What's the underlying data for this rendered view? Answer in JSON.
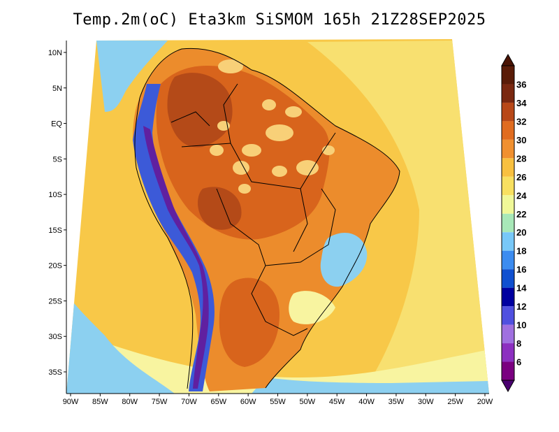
{
  "title": "Temp.2m(oC) Eta3km SiSMOM 165h 21Z28SEP2025",
  "variable": "Temp.2m",
  "units": "oC",
  "model": "Eta3km SiSMOM",
  "forecast_hour": "165h",
  "valid_time": "21Z28SEP2025",
  "lat_ticks": [
    {
      "label": "10N",
      "lat": 10
    },
    {
      "label": "5N",
      "lat": 5
    },
    {
      "label": "EQ",
      "lat": 0
    },
    {
      "label": "5S",
      "lat": -5
    },
    {
      "label": "10S",
      "lat": -10
    },
    {
      "label": "15S",
      "lat": -15
    },
    {
      "label": "20S",
      "lat": -20
    },
    {
      "label": "25S",
      "lat": -25
    },
    {
      "label": "30S",
      "lat": -30
    },
    {
      "label": "35S",
      "lat": -35
    }
  ],
  "lon_ticks": [
    {
      "label": "90W",
      "lon": -90
    },
    {
      "label": "85W",
      "lon": -85
    },
    {
      "label": "80W",
      "lon": -80
    },
    {
      "label": "75W",
      "lon": -75
    },
    {
      "label": "70W",
      "lon": -70
    },
    {
      "label": "65W",
      "lon": -65
    },
    {
      "label": "60W",
      "lon": -60
    },
    {
      "label": "55W",
      "lon": -55
    },
    {
      "label": "50W",
      "lon": -50
    },
    {
      "label": "45W",
      "lon": -45
    },
    {
      "label": "40W",
      "lon": -40
    },
    {
      "label": "35W",
      "lon": -35
    },
    {
      "label": "30W",
      "lon": -30
    },
    {
      "label": "25W",
      "lon": -25
    },
    {
      "label": "20W",
      "lon": -20
    }
  ],
  "colorbar": {
    "levels": [
      "6",
      "8",
      "10",
      "12",
      "14",
      "16",
      "18",
      "20",
      "22",
      "24",
      "26",
      "28",
      "30",
      "32",
      "34",
      "36"
    ],
    "colors": [
      "#7a0080",
      "#8c30c0",
      "#a070e0",
      "#5050e0",
      "#0000a0",
      "#1050d0",
      "#3c8cf0",
      "#78c8f8",
      "#a8e8b8",
      "#f0f898",
      "#f8e060",
      "#f8c040",
      "#f09030",
      "#e06c20",
      "#b84818",
      "#7a2810",
      "#5a1c08"
    ]
  },
  "legend": {
    "colorbar_position": "right",
    "below_min_color": "#4a0070",
    "above_max_color": "#4a1404"
  },
  "field_colors": {
    "ocean_warm": "#f8c848",
    "ocean_mild": "#f8e070",
    "ocean_cool": "#f8f4a0",
    "land_hot": "#d8641c",
    "land_very_hot": "#b44a18",
    "land_warm": "#ec8c2c",
    "andes_cold": "#3c5ad8",
    "andes_very_cold": "#6020a0",
    "coast_cool": "#8cd0f0",
    "hotspot_light": "#f8d078"
  }
}
